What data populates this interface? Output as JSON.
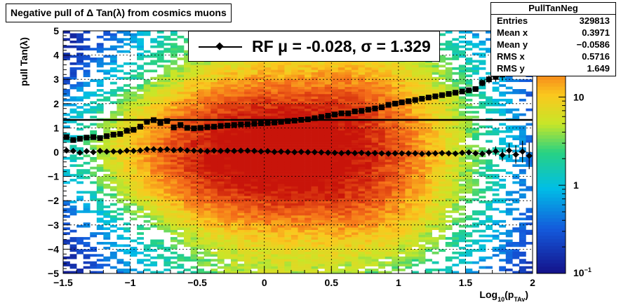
{
  "chart_data": {
    "type": "heatmap",
    "title": "Negative pull of Δ Tan(λ) from cosmics muons",
    "xlabel_main": "Log",
    "xlabel_sub": "10",
    "xlabel_paren_open": "(p",
    "xlabel_sub2": "TAv",
    "xlabel_paren_close": ")",
    "ylabel": "pull Tan(λ)",
    "xlim": [
      -1.5,
      2
    ],
    "ylim": [
      -5,
      5
    ],
    "xticks": [
      -1.5,
      -1,
      -0.5,
      0,
      0.5,
      1,
      1.5,
      2
    ],
    "xtick_labels": [
      "−1.5",
      "−1",
      "−0.5",
      "0",
      "0.5",
      "1",
      "1.5",
      "2"
    ],
    "yticks": [
      -5,
      -4,
      -3,
      -2,
      -1,
      0,
      1,
      2,
      3,
      4,
      5
    ],
    "ytick_labels": [
      "−5",
      "−4",
      "−3",
      "−2",
      "−1",
      "0",
      "1",
      "2",
      "3",
      "4",
      "5"
    ],
    "z_scale": "log",
    "z_tick_labels": [
      "10",
      "1"
    ],
    "z_tick_values": [
      10,
      1
    ],
    "z_bottom_label": "10",
    "z_bottom_exp": "−1",
    "grid": true,
    "fit_line_y": 1.329,
    "legend": {
      "label": "RF μ = -0.028, σ =   1.329"
    },
    "stats": {
      "name": "PullTanNeg",
      "rows": [
        {
          "key": "Entries",
          "value": "329813"
        },
        {
          "key": "Mean x",
          "value": "0.3971"
        },
        {
          "key": "Mean y",
          "value": "−0.0586"
        },
        {
          "key": "RMS x",
          "value": "0.5716"
        },
        {
          "key": "RMS y",
          "value": "1.649"
        }
      ]
    },
    "series": [
      {
        "name": "mean",
        "marker": "diamond",
        "x": [
          -1.475,
          -1.425,
          -1.375,
          -1.325,
          -1.275,
          -1.225,
          -1.175,
          -1.125,
          -1.075,
          -1.025,
          -0.975,
          -0.925,
          -0.875,
          -0.825,
          -0.775,
          -0.725,
          -0.675,
          -0.625,
          -0.575,
          -0.525,
          -0.475,
          -0.425,
          -0.375,
          -0.325,
          -0.275,
          -0.225,
          -0.175,
          -0.125,
          -0.075,
          -0.025,
          0.025,
          0.075,
          0.125,
          0.175,
          0.225,
          0.275,
          0.325,
          0.375,
          0.425,
          0.475,
          0.525,
          0.575,
          0.625,
          0.675,
          0.725,
          0.775,
          0.825,
          0.875,
          0.925,
          0.975,
          1.025,
          1.075,
          1.125,
          1.175,
          1.225,
          1.275,
          1.325,
          1.375,
          1.425,
          1.475,
          1.525,
          1.575,
          1.625,
          1.675,
          1.725,
          1.775,
          1.825,
          1.875,
          1.925,
          1.975
        ],
        "y": [
          0.07,
          0.05,
          -0.02,
          0.04,
          0.0,
          0.05,
          0.02,
          0.03,
          0.02,
          0.06,
          0.05,
          0.07,
          0.12,
          0.12,
          0.1,
          0.12,
          0.08,
          0.1,
          0.07,
          0.06,
          0.05,
          0.04,
          0.06,
          0.05,
          0.06,
          0.05,
          0.06,
          0.06,
          0.05,
          0.03,
          0.04,
          0.01,
          0.02,
          0.01,
          0.0,
          0.01,
          0.0,
          0.0,
          -0.01,
          -0.02,
          -0.03,
          -0.04,
          -0.02,
          -0.04,
          -0.03,
          -0.05,
          -0.04,
          -0.05,
          -0.06,
          -0.05,
          -0.05,
          -0.05,
          -0.05,
          -0.07,
          -0.06,
          -0.05,
          -0.04,
          -0.05,
          -0.06,
          -0.03,
          -0.01,
          -0.05,
          -0.07,
          0.0,
          0.04,
          -0.12,
          0.07,
          -0.1,
          0.02,
          -0.15
        ],
        "yerr": [
          0.05,
          0.05,
          0.05,
          0.04,
          0.04,
          0.04,
          0.04,
          0.04,
          0.03,
          0.03,
          0.03,
          0.03,
          0.03,
          0.02,
          0.02,
          0.02,
          0.02,
          0.02,
          0.02,
          0.02,
          0.02,
          0.02,
          0.02,
          0.01,
          0.01,
          0.01,
          0.01,
          0.01,
          0.01,
          0.01,
          0.01,
          0.01,
          0.01,
          0.01,
          0.01,
          0.01,
          0.01,
          0.01,
          0.01,
          0.01,
          0.01,
          0.01,
          0.01,
          0.01,
          0.02,
          0.02,
          0.02,
          0.02,
          0.02,
          0.02,
          0.03,
          0.03,
          0.03,
          0.04,
          0.04,
          0.04,
          0.05,
          0.06,
          0.06,
          0.07,
          0.09,
          0.11,
          0.13,
          0.16,
          0.2,
          0.25,
          0.3,
          0.38,
          0.45,
          0.55
        ]
      },
      {
        "name": "rms",
        "marker": "square",
        "x": [
          -1.475,
          -1.425,
          -1.375,
          -1.325,
          -1.275,
          -1.225,
          -1.175,
          -1.125,
          -1.075,
          -1.025,
          -0.975,
          -0.925,
          -0.875,
          -0.825,
          -0.775,
          -0.725,
          -0.675,
          -0.625,
          -0.575,
          -0.525,
          -0.475,
          -0.425,
          -0.375,
          -0.325,
          -0.275,
          -0.225,
          -0.175,
          -0.125,
          -0.075,
          -0.025,
          0.025,
          0.075,
          0.125,
          0.175,
          0.225,
          0.275,
          0.325,
          0.375,
          0.425,
          0.475,
          0.525,
          0.575,
          0.625,
          0.675,
          0.725,
          0.775,
          0.825,
          0.875,
          0.925,
          0.975,
          1.025,
          1.075,
          1.125,
          1.175,
          1.225,
          1.275,
          1.325,
          1.375,
          1.425,
          1.475,
          1.525,
          1.575,
          1.625,
          1.675,
          1.725,
          1.775,
          1.825,
          1.875,
          1.925,
          1.975
        ],
        "y": [
          0.62,
          0.5,
          0.55,
          0.6,
          0.62,
          0.58,
          0.66,
          0.72,
          0.75,
          0.88,
          0.92,
          1.05,
          1.25,
          1.32,
          1.2,
          1.28,
          1.02,
          1.12,
          1.0,
          0.98,
          1.0,
          1.03,
          1.05,
          1.08,
          1.1,
          1.12,
          1.14,
          1.15,
          1.17,
          1.19,
          1.2,
          1.22,
          1.25,
          1.28,
          1.3,
          1.33,
          1.35,
          1.4,
          1.45,
          1.5,
          1.55,
          1.6,
          1.6,
          1.68,
          1.7,
          1.75,
          1.8,
          1.85,
          1.95,
          2.0,
          2.05,
          2.1,
          2.15,
          2.2,
          2.25,
          2.3,
          2.35,
          2.4,
          2.45,
          2.5,
          2.55,
          2.6,
          2.85,
          3.0,
          3.1,
          3.2,
          3.6,
          3.8,
          4.1,
          4.5
        ],
        "yerr": [
          0.05,
          0.05,
          0.05,
          0.04,
          0.04,
          0.04,
          0.04,
          0.04,
          0.03,
          0.03,
          0.03,
          0.03,
          0.03,
          0.02,
          0.02,
          0.02,
          0.02,
          0.02,
          0.02,
          0.02,
          0.02,
          0.02,
          0.02,
          0.01,
          0.01,
          0.01,
          0.01,
          0.01,
          0.01,
          0.01,
          0.01,
          0.01,
          0.01,
          0.01,
          0.01,
          0.01,
          0.01,
          0.01,
          0.01,
          0.01,
          0.01,
          0.01,
          0.01,
          0.01,
          0.02,
          0.02,
          0.02,
          0.02,
          0.02,
          0.02,
          0.03,
          0.03,
          0.03,
          0.04,
          0.04,
          0.04,
          0.05,
          0.06,
          0.06,
          0.07,
          0.09,
          0.11,
          0.13,
          0.16,
          0.2,
          0.25,
          0.3,
          0.38,
          0.45,
          0.55
        ]
      }
    ]
  }
}
